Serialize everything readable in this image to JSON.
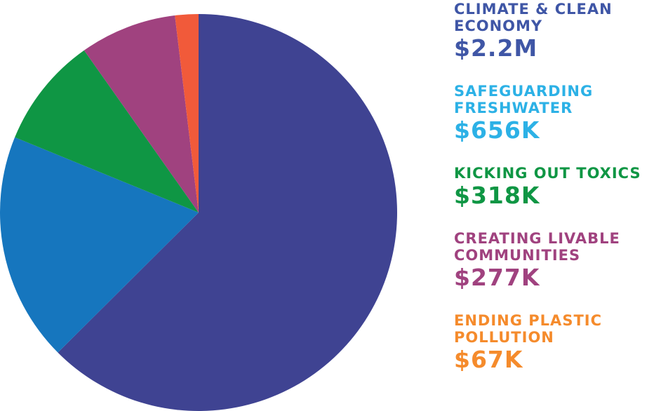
{
  "chart_data": {
    "type": "pie",
    "series": [
      {
        "name": "CLIMATE & CLEAN ECONOMY",
        "values": [
          2200000
        ],
        "value_labels": [
          "$2.2M"
        ],
        "color": "#3f4392",
        "label_color": "#3f56a6"
      },
      {
        "name": "SAFEGUARDING FRESHWATER",
        "values": [
          656000
        ],
        "value_labels": [
          "$656K"
        ],
        "color": "#1676be",
        "label_color": "#2cb1e6"
      },
      {
        "name": "KICKING OUT TOXICS",
        "values": [
          318000
        ],
        "value_labels": [
          "$318K"
        ],
        "color": "#0f9644",
        "label_color": "#0f9644"
      },
      {
        "name": "CREATING LIVABLE COMMUNITIES",
        "values": [
          277000
        ],
        "value_labels": [
          "$277K"
        ],
        "color": "#a0427f",
        "label_color": "#a0427f"
      },
      {
        "name": "ENDING PLASTIC POLLUTION",
        "values": [
          67000
        ],
        "value_labels": [
          "$67K"
        ],
        "color": "#f15a3a",
        "label_color": "#f58b2c"
      }
    ]
  }
}
